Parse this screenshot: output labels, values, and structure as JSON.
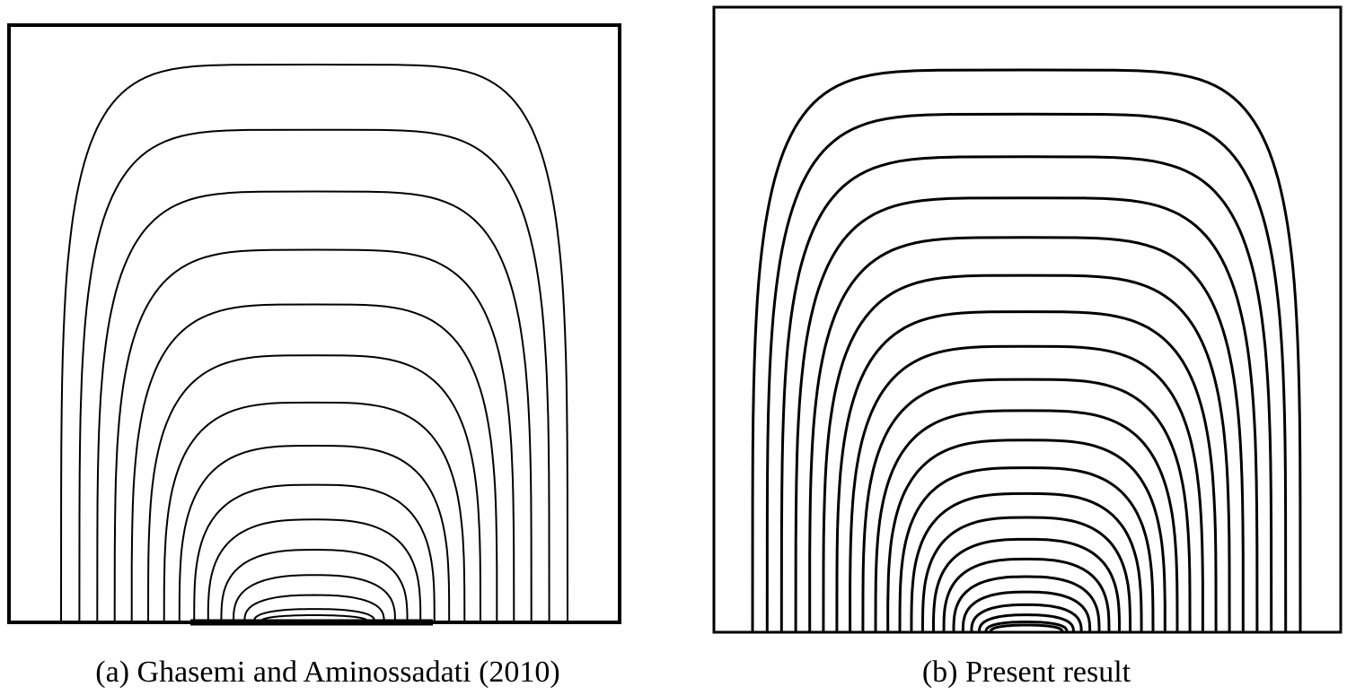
{
  "panels": [
    {
      "caption": "(a) Ghasemi and Aminossadati (2010)"
    },
    {
      "caption": "(b) Present result"
    }
  ]
}
